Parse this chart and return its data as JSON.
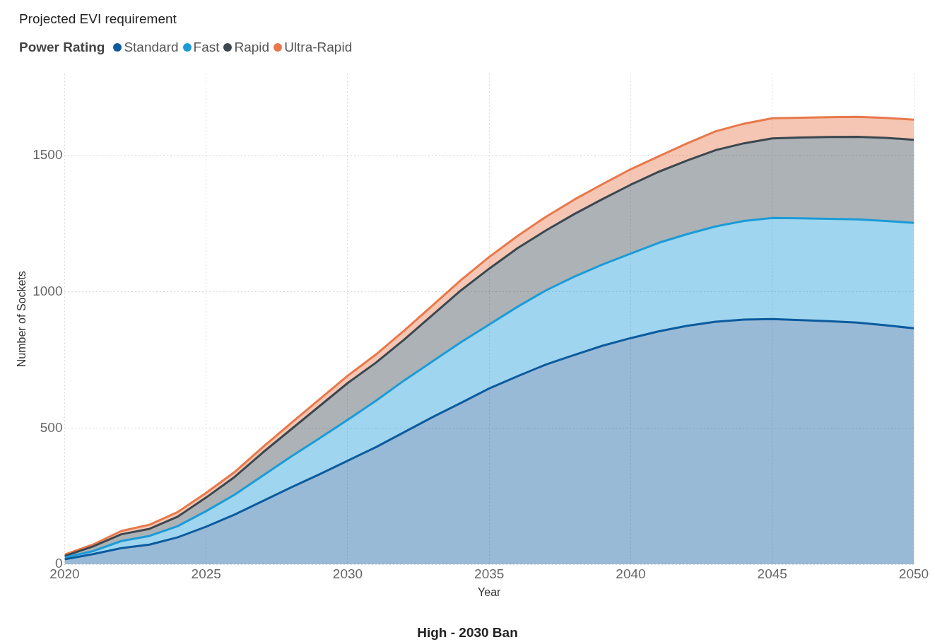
{
  "chart_data": {
    "type": "area",
    "stacked": true,
    "title": "Projected EVI requirement",
    "legend_title": "Power Rating",
    "xlabel": "Year",
    "ylabel": "Number of Sockets",
    "annotations": [
      "High - 2030 Ban"
    ],
    "x": [
      2020,
      2021,
      2022,
      2023,
      2024,
      2025,
      2026,
      2027,
      2028,
      2029,
      2030,
      2031,
      2032,
      2033,
      2034,
      2035,
      2036,
      2037,
      2038,
      2039,
      2040,
      2041,
      2042,
      2043,
      2044,
      2045,
      2046,
      2047,
      2048,
      2049,
      2050
    ],
    "series": [
      {
        "name": "Standard",
        "color": "#0b5b9e",
        "values": [
          18,
          37,
          59,
          72,
          99,
          138,
          182,
          232,
          282,
          330,
          380,
          430,
          485,
          540,
          592,
          645,
          690,
          733,
          768,
          802,
          830,
          855,
          875,
          890,
          898,
          900,
          896,
          892,
          887,
          877,
          866
        ]
      },
      {
        "name": "Fast",
        "color": "#1b9bd7",
        "values": [
          7,
          11,
          26,
          32,
          41,
          57,
          73,
          93,
          113,
          132,
          150,
          170,
          190,
          205,
          223,
          235,
          255,
          272,
          287,
          298,
          310,
          325,
          337,
          350,
          362,
          371,
          374,
          376,
          379,
          383,
          387
        ]
      },
      {
        "name": "Rapid",
        "color": "#3b4750",
        "values": [
          5,
          17,
          25,
          26,
          35,
          50,
          65,
          85,
          100,
          118,
          135,
          140,
          150,
          170,
          190,
          205,
          215,
          220,
          230,
          240,
          253,
          261,
          270,
          280,
          285,
          292,
          296,
          300,
          303,
          305,
          305
        ]
      },
      {
        "name": "Ultra-Rapid",
        "color": "#e8784a",
        "values": [
          5,
          7,
          12,
          15,
          17,
          17,
          18,
          20,
          23,
          25,
          27,
          30,
          33,
          35,
          38,
          43,
          45,
          50,
          53,
          55,
          57,
          57,
          63,
          69,
          72,
          74,
          73,
          73,
          73,
          73,
          74
        ]
      }
    ],
    "xlim": [
      2020,
      2050
    ],
    "xticks": [
      2020,
      2025,
      2030,
      2035,
      2040,
      2045,
      2050
    ],
    "ylim": [
      0,
      1800
    ],
    "yticks": [
      0,
      500,
      1000,
      1500
    ],
    "grid": true,
    "legend": "top left"
  }
}
